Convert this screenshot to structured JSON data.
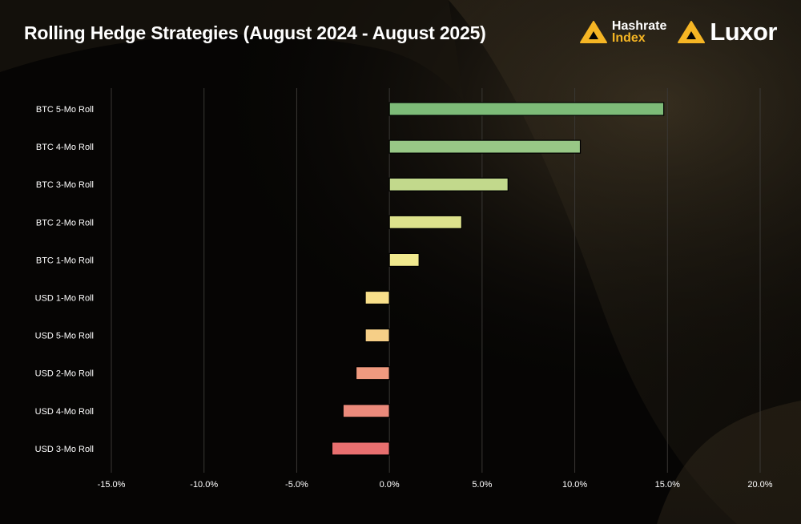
{
  "header": {
    "title": "Rolling Hedge Strategies (August 2024  - August 2025)",
    "logos": {
      "hashrate_index": {
        "line1": "Hashrate",
        "line2": "Index"
      },
      "luxor": "Luxor"
    }
  },
  "colors": {
    "background": "#060504",
    "brand_orange": "#f5b524",
    "grid": "#3a3835"
  },
  "chart_data": {
    "type": "bar",
    "orientation": "horizontal",
    "title": "Rolling Hedge Strategies (August 2024  - August 2025)",
    "xlabel": "",
    "ylabel": "",
    "xlim": [
      -15,
      20
    ],
    "tick_values": [
      -15,
      -10,
      -5,
      0,
      5,
      10,
      15,
      20
    ],
    "tick_labels": [
      "-15.0%",
      "-10.0%",
      "-5.0%",
      "0.0%",
      "5.0%",
      "10.0%",
      "15.0%",
      "20.0%"
    ],
    "grid": true,
    "categories": [
      "BTC 5-Mo Roll",
      "BTC 4-Mo Roll",
      "BTC 3-Mo Roll",
      "BTC 2-Mo Roll",
      "BTC 1-Mo Roll",
      "USD 1-Mo Roll",
      "USD 5-Mo Roll",
      "USD 2-Mo Roll",
      "USD 4-Mo Roll",
      "USD 3-Mo Roll"
    ],
    "values": [
      14.8,
      10.3,
      6.4,
      3.9,
      1.6,
      -1.3,
      -1.3,
      -1.8,
      -2.5,
      -3.1
    ],
    "bar_colors": [
      "#7dbb78",
      "#98c886",
      "#c2d98c",
      "#dde28c",
      "#f0e98e",
      "#f8df8a",
      "#f6cf87",
      "#ef9a7f",
      "#eb8a7b",
      "#e86f6f"
    ]
  }
}
